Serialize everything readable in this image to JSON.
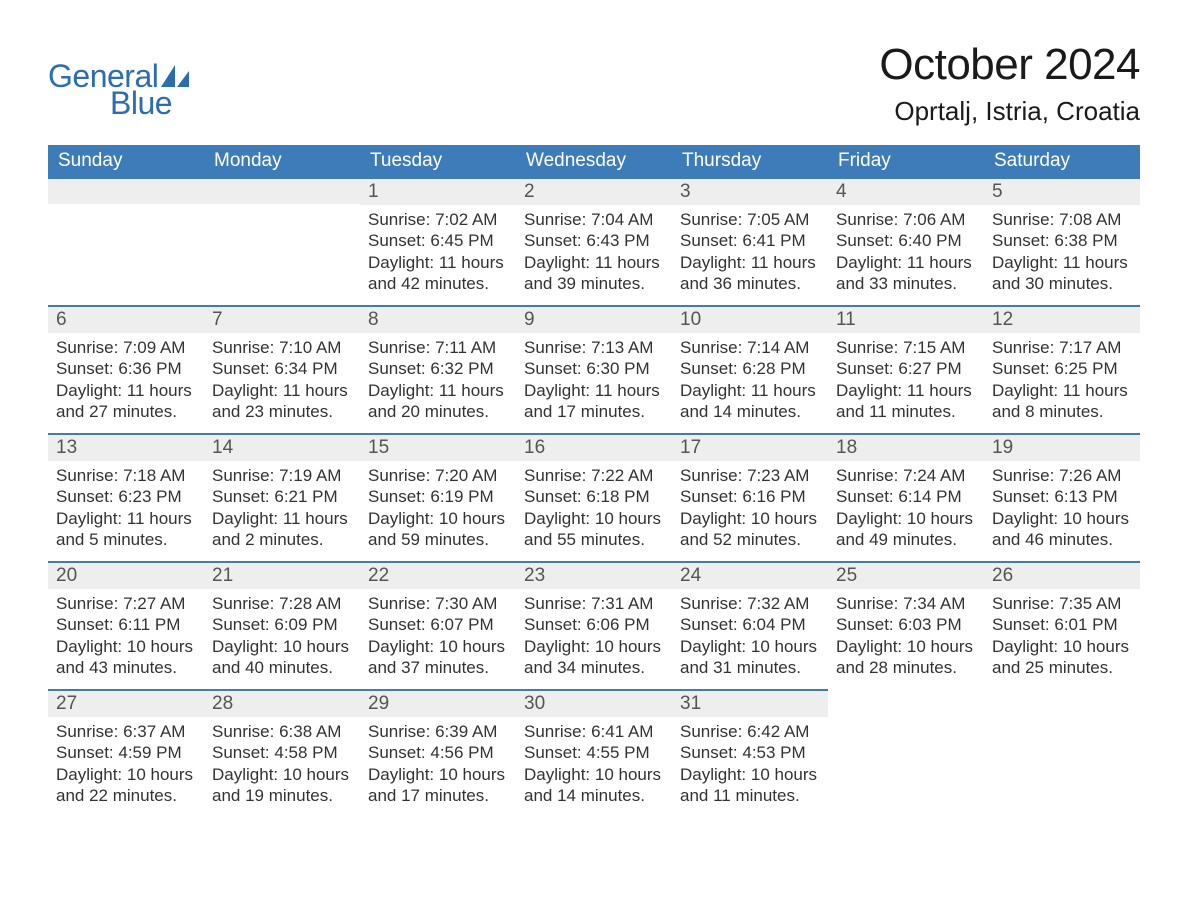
{
  "brand": {
    "word1": "General",
    "word2": "Blue",
    "text_color": "#2b6db0",
    "sail_color": "#2b6db0"
  },
  "title": {
    "month": "October 2024",
    "location": "Oprtalj, Istria, Croatia",
    "month_fontsize": 44,
    "location_fontsize": 26,
    "text_color": "#1a1a1a"
  },
  "calendar": {
    "header_bg": "#3d7cb8",
    "header_fg": "#ffffff",
    "daynum_bg": "#eeeeee",
    "daynum_border": "#3d7cb8",
    "body_fg": "#333333",
    "days_of_week": [
      "Sunday",
      "Monday",
      "Tuesday",
      "Wednesday",
      "Thursday",
      "Friday",
      "Saturday"
    ],
    "weeks": [
      [
        null,
        null,
        {
          "n": "1",
          "sunrise": "7:02 AM",
          "sunset": "6:45 PM",
          "dl1": "Daylight: 11 hours",
          "dl2": "and 42 minutes."
        },
        {
          "n": "2",
          "sunrise": "7:04 AM",
          "sunset": "6:43 PM",
          "dl1": "Daylight: 11 hours",
          "dl2": "and 39 minutes."
        },
        {
          "n": "3",
          "sunrise": "7:05 AM",
          "sunset": "6:41 PM",
          "dl1": "Daylight: 11 hours",
          "dl2": "and 36 minutes."
        },
        {
          "n": "4",
          "sunrise": "7:06 AM",
          "sunset": "6:40 PM",
          "dl1": "Daylight: 11 hours",
          "dl2": "and 33 minutes."
        },
        {
          "n": "5",
          "sunrise": "7:08 AM",
          "sunset": "6:38 PM",
          "dl1": "Daylight: 11 hours",
          "dl2": "and 30 minutes."
        }
      ],
      [
        {
          "n": "6",
          "sunrise": "7:09 AM",
          "sunset": "6:36 PM",
          "dl1": "Daylight: 11 hours",
          "dl2": "and 27 minutes."
        },
        {
          "n": "7",
          "sunrise": "7:10 AM",
          "sunset": "6:34 PM",
          "dl1": "Daylight: 11 hours",
          "dl2": "and 23 minutes."
        },
        {
          "n": "8",
          "sunrise": "7:11 AM",
          "sunset": "6:32 PM",
          "dl1": "Daylight: 11 hours",
          "dl2": "and 20 minutes."
        },
        {
          "n": "9",
          "sunrise": "7:13 AM",
          "sunset": "6:30 PM",
          "dl1": "Daylight: 11 hours",
          "dl2": "and 17 minutes."
        },
        {
          "n": "10",
          "sunrise": "7:14 AM",
          "sunset": "6:28 PM",
          "dl1": "Daylight: 11 hours",
          "dl2": "and 14 minutes."
        },
        {
          "n": "11",
          "sunrise": "7:15 AM",
          "sunset": "6:27 PM",
          "dl1": "Daylight: 11 hours",
          "dl2": "and 11 minutes."
        },
        {
          "n": "12",
          "sunrise": "7:17 AM",
          "sunset": "6:25 PM",
          "dl1": "Daylight: 11 hours",
          "dl2": "and 8 minutes."
        }
      ],
      [
        {
          "n": "13",
          "sunrise": "7:18 AM",
          "sunset": "6:23 PM",
          "dl1": "Daylight: 11 hours",
          "dl2": "and 5 minutes."
        },
        {
          "n": "14",
          "sunrise": "7:19 AM",
          "sunset": "6:21 PM",
          "dl1": "Daylight: 11 hours",
          "dl2": "and 2 minutes."
        },
        {
          "n": "15",
          "sunrise": "7:20 AM",
          "sunset": "6:19 PM",
          "dl1": "Daylight: 10 hours",
          "dl2": "and 59 minutes."
        },
        {
          "n": "16",
          "sunrise": "7:22 AM",
          "sunset": "6:18 PM",
          "dl1": "Daylight: 10 hours",
          "dl2": "and 55 minutes."
        },
        {
          "n": "17",
          "sunrise": "7:23 AM",
          "sunset": "6:16 PM",
          "dl1": "Daylight: 10 hours",
          "dl2": "and 52 minutes."
        },
        {
          "n": "18",
          "sunrise": "7:24 AM",
          "sunset": "6:14 PM",
          "dl1": "Daylight: 10 hours",
          "dl2": "and 49 minutes."
        },
        {
          "n": "19",
          "sunrise": "7:26 AM",
          "sunset": "6:13 PM",
          "dl1": "Daylight: 10 hours",
          "dl2": "and 46 minutes."
        }
      ],
      [
        {
          "n": "20",
          "sunrise": "7:27 AM",
          "sunset": "6:11 PM",
          "dl1": "Daylight: 10 hours",
          "dl2": "and 43 minutes."
        },
        {
          "n": "21",
          "sunrise": "7:28 AM",
          "sunset": "6:09 PM",
          "dl1": "Daylight: 10 hours",
          "dl2": "and 40 minutes."
        },
        {
          "n": "22",
          "sunrise": "7:30 AM",
          "sunset": "6:07 PM",
          "dl1": "Daylight: 10 hours",
          "dl2": "and 37 minutes."
        },
        {
          "n": "23",
          "sunrise": "7:31 AM",
          "sunset": "6:06 PM",
          "dl1": "Daylight: 10 hours",
          "dl2": "and 34 minutes."
        },
        {
          "n": "24",
          "sunrise": "7:32 AM",
          "sunset": "6:04 PM",
          "dl1": "Daylight: 10 hours",
          "dl2": "and 31 minutes."
        },
        {
          "n": "25",
          "sunrise": "7:34 AM",
          "sunset": "6:03 PM",
          "dl1": "Daylight: 10 hours",
          "dl2": "and 28 minutes."
        },
        {
          "n": "26",
          "sunrise": "7:35 AM",
          "sunset": "6:01 PM",
          "dl1": "Daylight: 10 hours",
          "dl2": "and 25 minutes."
        }
      ],
      [
        {
          "n": "27",
          "sunrise": "6:37 AM",
          "sunset": "4:59 PM",
          "dl1": "Daylight: 10 hours",
          "dl2": "and 22 minutes."
        },
        {
          "n": "28",
          "sunrise": "6:38 AM",
          "sunset": "4:58 PM",
          "dl1": "Daylight: 10 hours",
          "dl2": "and 19 minutes."
        },
        {
          "n": "29",
          "sunrise": "6:39 AM",
          "sunset": "4:56 PM",
          "dl1": "Daylight: 10 hours",
          "dl2": "and 17 minutes."
        },
        {
          "n": "30",
          "sunrise": "6:41 AM",
          "sunset": "4:55 PM",
          "dl1": "Daylight: 10 hours",
          "dl2": "and 14 minutes."
        },
        {
          "n": "31",
          "sunrise": "6:42 AM",
          "sunset": "4:53 PM",
          "dl1": "Daylight: 10 hours",
          "dl2": "and 11 minutes."
        },
        null,
        null
      ]
    ],
    "labels": {
      "sunrise_prefix": "Sunrise: ",
      "sunset_prefix": "Sunset: "
    }
  }
}
